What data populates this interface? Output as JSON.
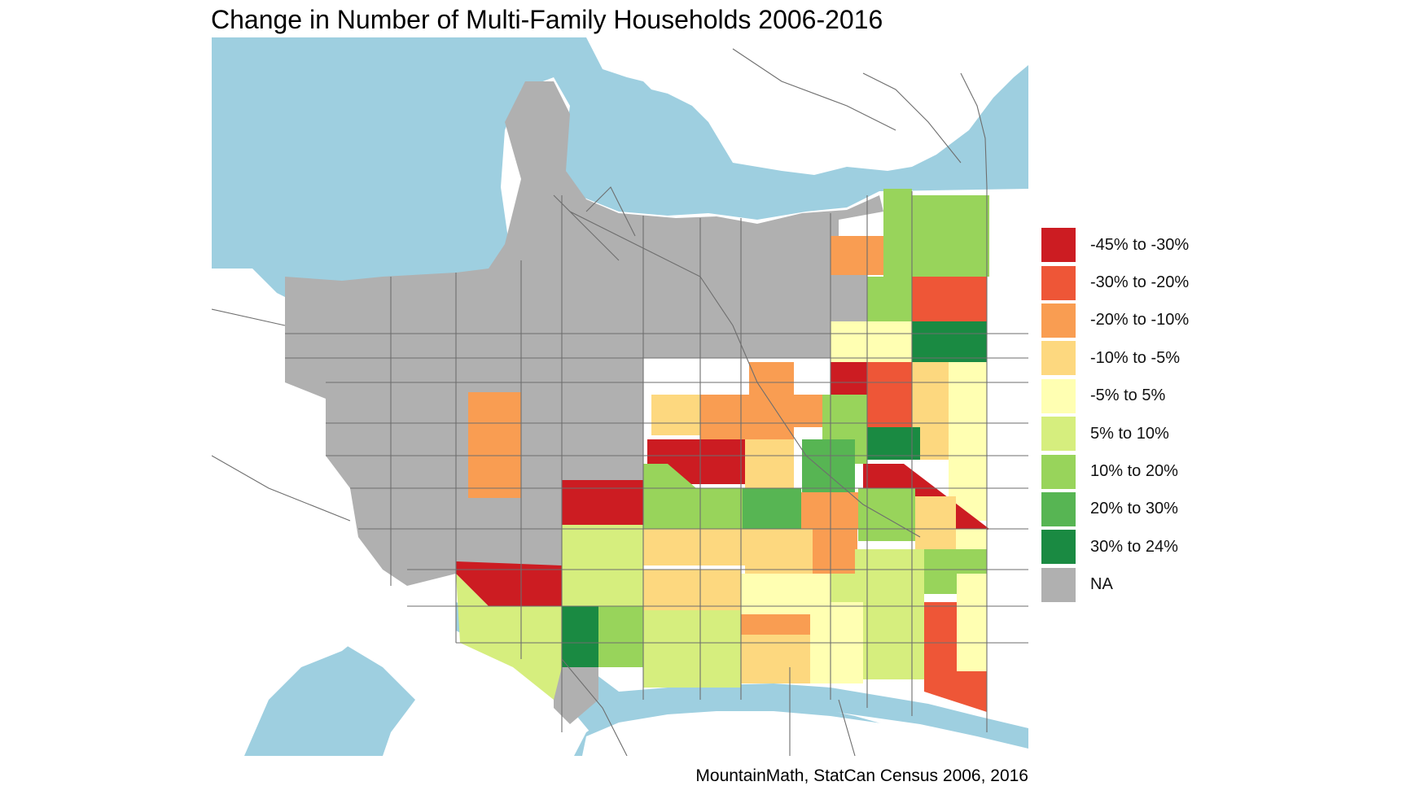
{
  "title": "Change in Number of Multi-Family Households 2006-2016",
  "caption": "MountainMath, StatCan Census 2006, 2016",
  "colors": {
    "water": "#9ecfe0",
    "land": "#ffffff",
    "na": "#b0b0b0",
    "roads": "#6e6e6e"
  },
  "legend": {
    "items": [
      {
        "label": "-45% to -30%",
        "color": "#cc1c22"
      },
      {
        "label": "-30% to -20%",
        "color": "#ee5637"
      },
      {
        "label": "-20% to -10%",
        "color": "#f99d52"
      },
      {
        "label": "-10% to -5%",
        "color": "#fdd87f"
      },
      {
        "label": "-5% to 5%",
        "color": "#ffffb2"
      },
      {
        "label": "5% to 10%",
        "color": "#d6ee7e"
      },
      {
        "label": "10% to 20%",
        "color": "#98d45b"
      },
      {
        "label": "20% to 30%",
        "color": "#57b553"
      },
      {
        "label": "30% to 24%",
        "color": "#1a8a42"
      },
      {
        "label": "NA",
        "color": "#b0b0b0"
      }
    ]
  }
}
